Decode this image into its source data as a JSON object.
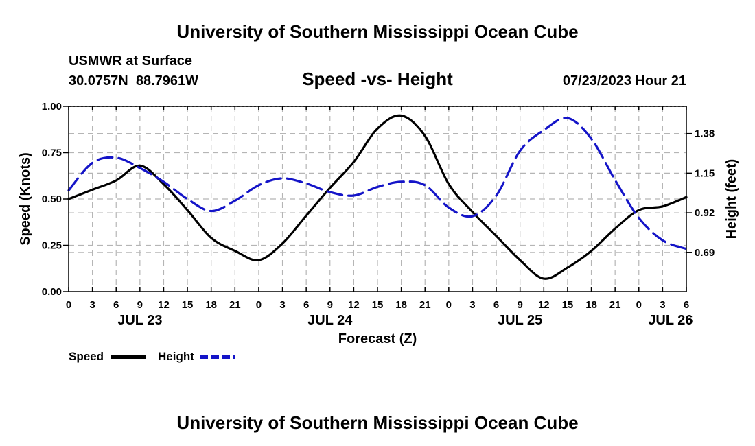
{
  "page": {
    "title_top": "University of Southern Mississippi Ocean Cube",
    "title_bottom": "University of Southern Mississippi Ocean Cube",
    "station_name": "USMWR at Surface",
    "station_coords": "30.0757N  88.7961W",
    "run_time": "07/23/2023 Hour 21"
  },
  "chart_data": {
    "type": "line",
    "title": "Speed -vs- Height",
    "xlabel": "Forecast (Z)",
    "ylabel": "Speed (Knots)",
    "y2label": "Height (feet)",
    "xlim": [
      0,
      78
    ],
    "ylim": [
      0,
      1.0
    ],
    "y2lim": [
      0.462,
      1.538
    ],
    "x_ticks": [
      0,
      3,
      6,
      9,
      12,
      15,
      18,
      21,
      24,
      27,
      30,
      33,
      36,
      39,
      42,
      45,
      48,
      51,
      54,
      57,
      60,
      63,
      66,
      69,
      72,
      75,
      78
    ],
    "x_tick_labels": [
      "0",
      "3",
      "6",
      "9",
      "12",
      "15",
      "18",
      "21",
      "0",
      "3",
      "6",
      "9",
      "12",
      "15",
      "18",
      "21",
      "0",
      "3",
      "6",
      "9",
      "12",
      "15",
      "18",
      "21",
      "0",
      "3",
      "6"
    ],
    "date_labels": [
      {
        "x": 9,
        "label": "JUL 23"
      },
      {
        "x": 33,
        "label": "JUL 24"
      },
      {
        "x": 57,
        "label": "JUL 25"
      },
      {
        "x": 76,
        "label": "JUL 26"
      }
    ],
    "y_ticks": [
      0.0,
      0.25,
      0.5,
      0.75,
      1.0
    ],
    "y_tick_labels": [
      "0.00",
      "0.25",
      "0.50",
      "0.75",
      "1.00"
    ],
    "y2_ticks": [
      0.69,
      0.92,
      1.15,
      1.38
    ],
    "y2_tick_labels": [
      "0.69",
      "0.92",
      "1.15",
      "1.38"
    ],
    "grid": true,
    "legend_position": "bottom-left",
    "series": [
      {
        "name": "Speed",
        "axis": "left",
        "color": "#000000",
        "style": "solid",
        "x": [
          0,
          3,
          6,
          9,
          12,
          15,
          18,
          21,
          24,
          27,
          30,
          33,
          36,
          39,
          42,
          45,
          48,
          51,
          54,
          57,
          60,
          63,
          66,
          69,
          72,
          75,
          78
        ],
        "values": [
          0.5,
          0.55,
          0.6,
          0.68,
          0.58,
          0.44,
          0.29,
          0.22,
          0.17,
          0.26,
          0.41,
          0.56,
          0.7,
          0.88,
          0.95,
          0.84,
          0.58,
          0.43,
          0.3,
          0.17,
          0.07,
          0.13,
          0.22,
          0.34,
          0.44,
          0.46,
          0.51
        ]
      },
      {
        "name": "Height",
        "axis": "right",
        "color": "#1414c8",
        "style": "dashed",
        "x": [
          0,
          3,
          6,
          9,
          12,
          15,
          18,
          21,
          24,
          27,
          30,
          33,
          36,
          39,
          42,
          45,
          48,
          51,
          54,
          57,
          60,
          63,
          66,
          69,
          72,
          75,
          78
        ],
        "values": [
          1.05,
          1.21,
          1.24,
          1.18,
          1.1,
          1.0,
          0.93,
          0.99,
          1.08,
          1.12,
          1.09,
          1.04,
          1.02,
          1.07,
          1.1,
          1.08,
          0.95,
          0.9,
          1.02,
          1.28,
          1.4,
          1.47,
          1.35,
          1.11,
          0.89,
          0.76,
          0.71
        ]
      }
    ]
  }
}
